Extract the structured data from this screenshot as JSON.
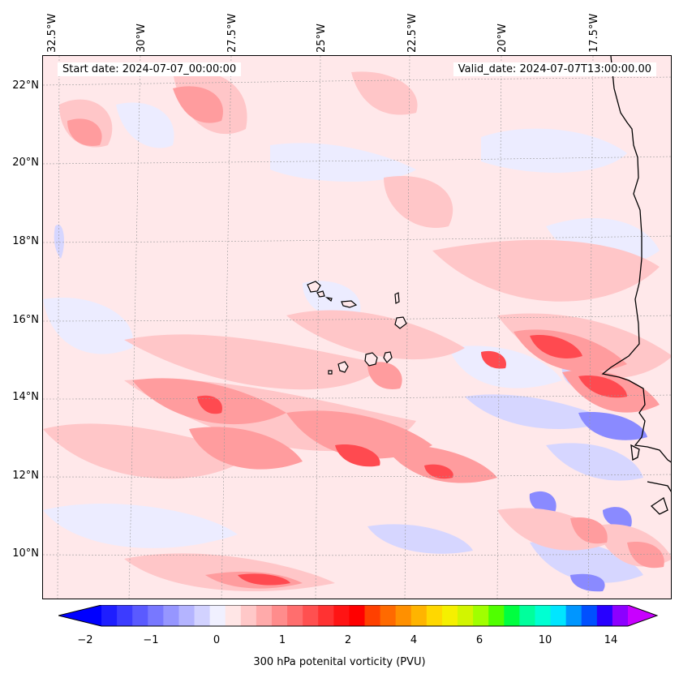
{
  "map": {
    "title_left": "Start date: 2024-07-07_00:00:00",
    "title_right": "Valid_date: 2024-07-07T13:00:00.00",
    "lon_labels": [
      "32.5°W",
      "30°W",
      "27.5°W",
      "25°W",
      "22.5°W",
      "20°W",
      "17.5°W"
    ],
    "lat_labels": [
      "22°N",
      "20°N",
      "18°N",
      "16°N",
      "14°N",
      "12°N",
      "10°N"
    ],
    "extent": {
      "lon_min": -33.4,
      "lon_max": -15.9,
      "lat_min": 8.8,
      "lat_max": 22.8
    }
  },
  "colorbar": {
    "label": "300 hPa potenital vorticity (PVU)",
    "tick_labels": [
      "−2",
      "−1",
      "0",
      "1",
      "2",
      "4",
      "6",
      "10",
      "14"
    ],
    "colors": [
      "#1e1eff",
      "#3c3cff",
      "#5a5aff",
      "#7878ff",
      "#9696ff",
      "#b4b4ff",
      "#d2d2ff",
      "#f0f0ff",
      "#ffe6e6",
      "#ffc8c8",
      "#ffaaaa",
      "#ff8c8c",
      "#ff6e6e",
      "#ff5050",
      "#ff3232",
      "#ff1414",
      "#ff0000",
      "#ff4000",
      "#ff6a00",
      "#ff9000",
      "#ffb400",
      "#ffd800",
      "#f5f000",
      "#d2f500",
      "#a0ff00",
      "#50ff00",
      "#00ff40",
      "#00ff9c",
      "#00ffd2",
      "#00e6ff",
      "#0096ff",
      "#0050ff",
      "#2800ff",
      "#8c00ff"
    ],
    "left_arrow_color": "#0000ff",
    "right_arrow_color": "#c800ff"
  }
}
